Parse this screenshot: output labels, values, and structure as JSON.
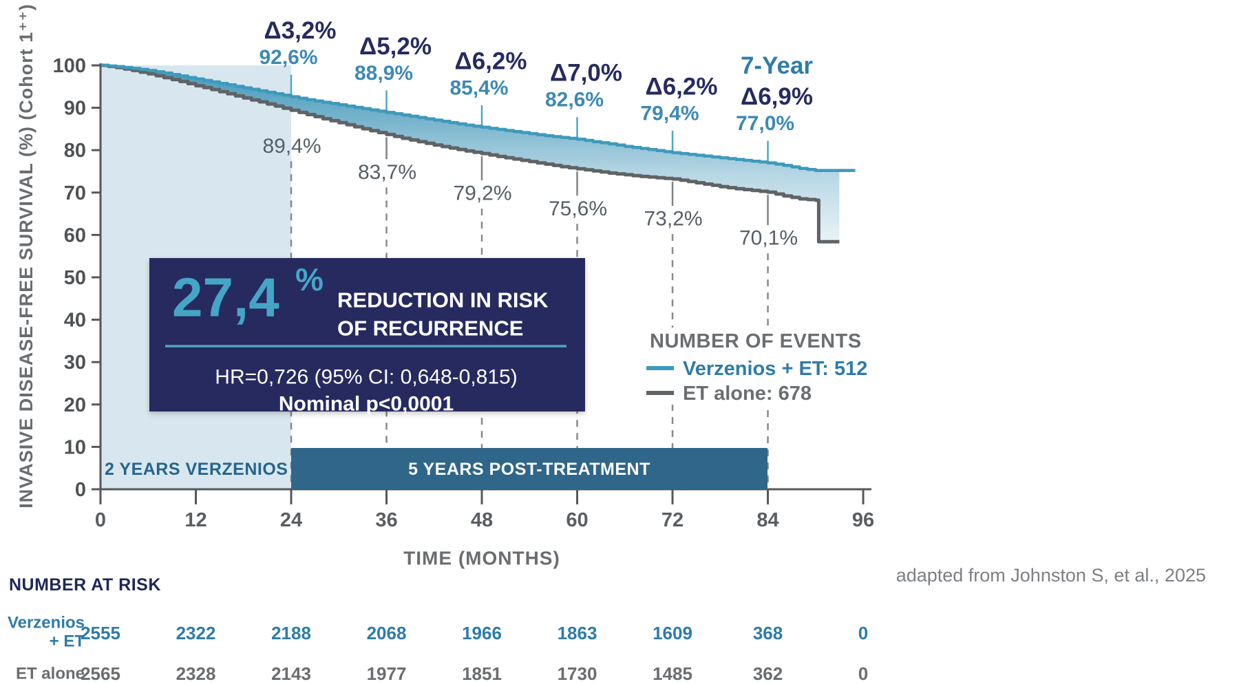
{
  "citation": {
    "text": "adapted from Johnston S, et al., 2025"
  },
  "risk_box": {
    "value": "27,4",
    "percent_sign": "%",
    "line1": "REDUCTION IN RISK",
    "line2": "OF RECURRENCE",
    "hr": "HR=0,726 (95% CI: 0,648-0,815)",
    "pvalue": "Nominal p<0,0001"
  },
  "events_legend": {
    "title": "NUMBER OF EVENTS",
    "items": [
      {
        "label": "Verzenios + ET: 512",
        "color": "#3E9ABC"
      },
      {
        "label": "ET alone: 678",
        "color": "#606366"
      }
    ]
  },
  "phase_bars": {
    "verzenios_region_label": "2 YEARS VERZENIOS",
    "post_treatment_label": "5 YEARS POST-TREATMENT"
  },
  "risk_table": {
    "title": "NUMBER AT RISK",
    "rows": [
      {
        "label_line1": "Verzenios",
        "label_line2": "+ ET",
        "values": [
          2555,
          2322,
          2188,
          2068,
          1966,
          1863,
          1609,
          368,
          0
        ]
      },
      {
        "label_line1": "ET alone",
        "label_line2": "",
        "values": [
          2565,
          2328,
          2143,
          1977,
          1851,
          1730,
          1485,
          362,
          0
        ]
      }
    ]
  },
  "chart_data": {
    "type": "line",
    "subtype": "kaplan-meier",
    "title": "",
    "xlabel": "TIME (MONTHS)",
    "ylabel": "INVASIVE DISEASE-FREE SURVIVAL (%) (Cohort 1⁺⁺)",
    "xlim": [
      0,
      96
    ],
    "ylim": [
      0,
      100
    ],
    "x_ticks": [
      0,
      12,
      24,
      36,
      48,
      60,
      72,
      84,
      96
    ],
    "y_ticks": [
      0,
      10,
      20,
      30,
      40,
      50,
      60,
      70,
      80,
      90,
      100
    ],
    "grid": false,
    "legend_position": "right-middle",
    "series": [
      {
        "name": "Verzenios + ET",
        "color": "#3E9ABC",
        "points": [
          [
            0,
            100
          ],
          [
            2,
            99.7
          ],
          [
            4,
            99.3
          ],
          [
            6,
            98.8
          ],
          [
            8,
            98.2
          ],
          [
            10,
            97.5
          ],
          [
            12,
            96.8
          ],
          [
            14,
            96.1
          ],
          [
            16,
            95.4
          ],
          [
            18,
            94.7
          ],
          [
            20,
            94.0
          ],
          [
            22,
            93.3
          ],
          [
            24,
            92.6
          ],
          [
            26,
            91.9
          ],
          [
            28,
            91.3
          ],
          [
            30,
            90.7
          ],
          [
            32,
            90.1
          ],
          [
            34,
            89.5
          ],
          [
            36,
            88.9
          ],
          [
            38,
            88.3
          ],
          [
            40,
            87.7
          ],
          [
            42,
            87.1
          ],
          [
            44,
            86.5
          ],
          [
            46,
            85.9
          ],
          [
            48,
            85.4
          ],
          [
            50,
            84.9
          ],
          [
            52,
            84.4
          ],
          [
            54,
            83.9
          ],
          [
            56,
            83.4
          ],
          [
            58,
            83.0
          ],
          [
            60,
            82.6
          ],
          [
            62,
            82.0
          ],
          [
            64,
            81.5
          ],
          [
            66,
            80.9
          ],
          [
            68,
            80.4
          ],
          [
            70,
            79.9
          ],
          [
            72,
            79.4
          ],
          [
            74,
            79.0
          ],
          [
            76,
            78.6
          ],
          [
            78,
            78.2
          ],
          [
            80,
            77.8
          ],
          [
            82,
            77.4
          ],
          [
            84,
            77.0
          ],
          [
            86,
            76.4
          ],
          [
            88,
            75.7
          ],
          [
            90,
            75.2
          ],
          [
            95,
            75.2
          ]
        ]
      },
      {
        "name": "ET alone",
        "color": "#606366",
        "points": [
          [
            0,
            100
          ],
          [
            2,
            99.5
          ],
          [
            4,
            98.8
          ],
          [
            6,
            98.0
          ],
          [
            8,
            97.1
          ],
          [
            10,
            96.2
          ],
          [
            12,
            95.2
          ],
          [
            14,
            94.3
          ],
          [
            16,
            93.3
          ],
          [
            18,
            92.3
          ],
          [
            20,
            91.4
          ],
          [
            22,
            90.4
          ],
          [
            24,
            89.4
          ],
          [
            26,
            88.4
          ],
          [
            28,
            87.4
          ],
          [
            30,
            86.5
          ],
          [
            32,
            85.5
          ],
          [
            34,
            84.6
          ],
          [
            36,
            83.7
          ],
          [
            38,
            82.8
          ],
          [
            40,
            82.0
          ],
          [
            42,
            81.2
          ],
          [
            44,
            80.5
          ],
          [
            46,
            79.8
          ],
          [
            48,
            79.2
          ],
          [
            50,
            78.5
          ],
          [
            52,
            77.9
          ],
          [
            54,
            77.3
          ],
          [
            56,
            76.7
          ],
          [
            58,
            76.1
          ],
          [
            60,
            75.6
          ],
          [
            62,
            75.1
          ],
          [
            64,
            74.6
          ],
          [
            66,
            74.2
          ],
          [
            68,
            73.8
          ],
          [
            70,
            73.5
          ],
          [
            72,
            73.2
          ],
          [
            74,
            72.6
          ],
          [
            76,
            72.0
          ],
          [
            78,
            71.4
          ],
          [
            80,
            70.9
          ],
          [
            82,
            70.5
          ],
          [
            84,
            70.1
          ],
          [
            86,
            69.2
          ],
          [
            88,
            68.5
          ],
          [
            90,
            68.2
          ],
          [
            90.4,
            58.4
          ],
          [
            93,
            58.4
          ]
        ]
      }
    ],
    "milestones": [
      {
        "month": 24,
        "delta_label": "Δ3,2%",
        "verzenios_label": "92,6%",
        "verzenios_value": 92.6,
        "et_alone_label": "89,4%",
        "et_alone_value": 89.4
      },
      {
        "month": 36,
        "delta_label": "Δ5,2%",
        "verzenios_label": "88,9%",
        "verzenios_value": 88.9,
        "et_alone_label": "83,7%",
        "et_alone_value": 83.7
      },
      {
        "month": 48,
        "delta_label": "Δ6,2%",
        "verzenios_label": "85,4%",
        "verzenios_value": 85.4,
        "et_alone_label": "79,2%",
        "et_alone_value": 79.2
      },
      {
        "month": 60,
        "delta_label": "Δ7,0%",
        "verzenios_label": "82,6%",
        "verzenios_value": 82.6,
        "et_alone_label": "75,6%",
        "et_alone_value": 75.6
      },
      {
        "month": 72,
        "delta_label": "Δ6,2%",
        "verzenios_label": "79,4%",
        "verzenios_value": 79.4,
        "et_alone_label": "73,2%",
        "et_alone_value": 73.2
      },
      {
        "month": 84,
        "prefix_label": "7-Year",
        "delta_label": "Δ6,9%",
        "verzenios_label": "77,0%",
        "verzenios_value": 77.0,
        "et_alone_label": "70,1%",
        "et_alone_value": 70.1
      }
    ],
    "treatment_phase_months": {
      "verzenios": [
        0,
        24
      ],
      "post_treatment": [
        24,
        84
      ]
    }
  },
  "colors": {
    "verzenios_curve": "#3E9ABC",
    "et_alone_curve": "#606366",
    "accent_teal_big": "#45A5C7",
    "navy_box": "#272B5F",
    "delta_text_navy": "#262B60",
    "teal_value_text": "#3D89B4",
    "gray_value_text": "#565E66",
    "light_region": "#D8E7EF",
    "phase_bar": "#2F6689",
    "axis_gray": "#55585A",
    "legend_gray": "#6B6E71",
    "risk_title_navy": "#1F2757",
    "citation_gray": "#7C8084",
    "dash_gray": "#87898C",
    "tick_teal": "#4FA6C4"
  }
}
